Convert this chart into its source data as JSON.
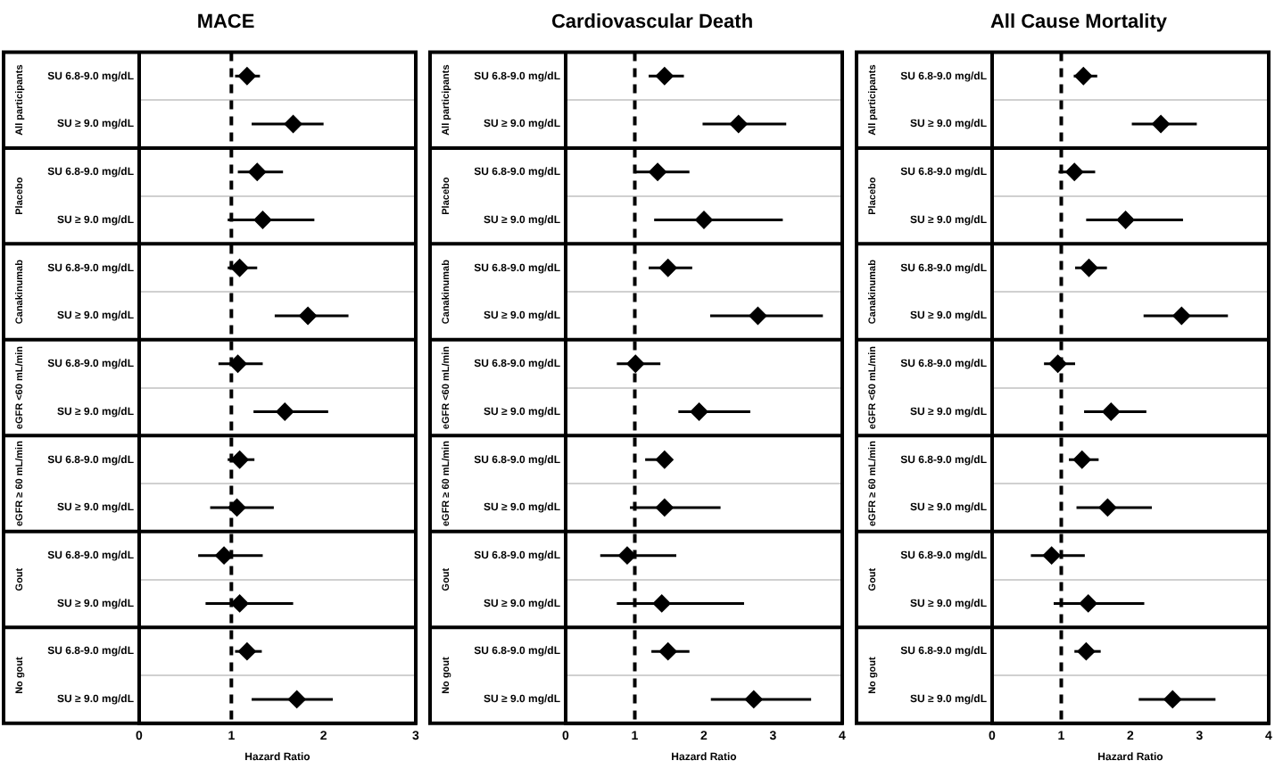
{
  "chart_data": [
    {
      "type": "scatter",
      "orientation": "horizontal",
      "title": "MACE",
      "xlabel": "Hazard Ratio",
      "color": "#000000",
      "marker": "diamond",
      "grid": "y",
      "xlim": [
        0,
        3
      ],
      "xticks": [
        0,
        1,
        2,
        3
      ],
      "categories": [
        "SU 6.8-9.0 mg/dL",
        "SU ≥ 9.0 mg/dL",
        "SU 6.8-9.0 mg/dL",
        "SU ≥ 9.0 mg/dL",
        "SU 6.8-9.0 mg/dL",
        "SU ≥ 9.0 mg/dL",
        "SU 6.8-9.0 mg/dL",
        "SU ≥ 9.0 mg/dL",
        "SU 6.8-9.0 mg/dL",
        "SU ≥ 9.0 mg/dL",
        "SU 6.8-9.0 mg/dL",
        "SU ≥ 9.0 mg/dL",
        "SU 6.8-9.0 mg/dL",
        "SU ≥ 9.0 mg/dL"
      ],
      "values": [
        1.17,
        1.67,
        1.28,
        1.34,
        1.09,
        1.83,
        1.07,
        1.58,
        1.09,
        1.06,
        0.92,
        1.09,
        1.17,
        1.71
      ],
      "errors": [
        [
          1.04,
          1.31
        ],
        [
          1.22,
          2.0
        ],
        [
          1.07,
          1.56
        ],
        [
          0.96,
          1.9
        ],
        [
          0.96,
          1.28
        ],
        [
          1.47,
          2.27
        ],
        [
          0.86,
          1.34
        ],
        [
          1.24,
          2.05
        ],
        [
          0.96,
          1.25
        ],
        [
          0.77,
          1.46
        ],
        [
          0.64,
          1.34
        ],
        [
          0.72,
          1.67
        ],
        [
          1.04,
          1.33
        ],
        [
          1.22,
          2.1
        ]
      ],
      "ref_lines": [
        {
          "axis": "x",
          "value": 1,
          "line_style": "dashed",
          "color": "#000000"
        }
      ],
      "annotations": [
        "All participants",
        "Placebo",
        "Canakinumab",
        "eGFR <60 mL/min",
        "eGFR ≥ 60 mL/min",
        "Gout",
        "No gout"
      ]
    },
    {
      "type": "scatter",
      "orientation": "horizontal",
      "title": "Cardiovascular Death",
      "xlabel": "Hazard Ratio",
      "color": "#000000",
      "marker": "diamond",
      "grid": "y",
      "xlim": [
        0,
        4
      ],
      "xticks": [
        0,
        1,
        2,
        3,
        4
      ],
      "categories": [
        "SU 6.8-9.0 mg/dL",
        "SU ≥ 9.0 mg/dL",
        "SU 6.8-9.0 mg/dL",
        "SU ≥ 9.0 mg/dL",
        "SU 6.8-9.0 mg/dL",
        "SU ≥ 9.0 mg/dL",
        "SU 6.8-9.0 mg/dL",
        "SU ≥ 9.0 mg/dL",
        "SU 6.8-9.0 mg/dL",
        "SU ≥ 9.0 mg/dL",
        "SU 6.8-9.0 mg/dL",
        "SU ≥ 9.0 mg/dL",
        "SU 6.8-9.0 mg/dL",
        "SU ≥ 9.0 mg/dL"
      ],
      "values": [
        1.43,
        2.5,
        1.33,
        2.0,
        1.48,
        2.78,
        1.01,
        1.93,
        1.43,
        1.43,
        0.89,
        1.39,
        1.48,
        2.72
      ],
      "errors": [
        [
          1.2,
          1.71
        ],
        [
          1.98,
          3.19
        ],
        [
          1.0,
          1.79
        ],
        [
          1.28,
          3.14
        ],
        [
          1.2,
          1.83
        ],
        [
          2.09,
          3.72
        ],
        [
          0.74,
          1.37
        ],
        [
          1.63,
          2.67
        ],
        [
          1.15,
          1.53
        ],
        [
          0.93,
          2.24
        ],
        [
          0.5,
          1.6
        ],
        [
          0.74,
          2.58
        ],
        [
          1.24,
          1.79
        ],
        [
          2.1,
          3.55
        ]
      ],
      "ref_lines": [
        {
          "axis": "x",
          "value": 1,
          "line_style": "dashed",
          "color": "#000000"
        }
      ],
      "annotations": [
        "All participants",
        "Placebo",
        "Canakinumab",
        "eGFR <60 mL/min",
        "eGFR ≥ 60 mL/min",
        "Gout",
        "No gout"
      ]
    },
    {
      "type": "scatter",
      "orientation": "horizontal",
      "title": "All Cause Mortality",
      "xlabel": "Hazard Ratio",
      "color": "#000000",
      "marker": "diamond",
      "grid": "y",
      "xlim": [
        0,
        4
      ],
      "xticks": [
        0,
        1,
        2,
        3,
        4
      ],
      "categories": [
        "SU 6.8-9.0 mg/dL",
        "SU ≥ 9.0 mg/dL",
        "SU 6.8-9.0 mg/dL",
        "SU ≥ 9.0 mg/dL",
        "SU 6.8-9.0 mg/dL",
        "SU ≥ 9.0 mg/dL",
        "SU 6.8-9.0 mg/dL",
        "SU ≥ 9.0 mg/dL",
        "SU 6.8-9.0 mg/dL",
        "SU ≥ 9.0 mg/dL",
        "SU 6.8-9.0 mg/dL",
        "SU ≥ 9.0 mg/dL",
        "SU 6.8-9.0 mg/dL",
        "SU ≥ 9.0 mg/dL"
      ],
      "values": [
        1.32,
        2.44,
        1.19,
        1.93,
        1.4,
        2.74,
        0.95,
        1.72,
        1.3,
        1.67,
        0.86,
        1.39,
        1.36,
        2.61
      ],
      "errors": [
        [
          1.18,
          1.52
        ],
        [
          2.02,
          2.96
        ],
        [
          0.96,
          1.49
        ],
        [
          1.36,
          2.76
        ],
        [
          1.2,
          1.66
        ],
        [
          2.19,
          3.41
        ],
        [
          0.75,
          1.2
        ],
        [
          1.33,
          2.23
        ],
        [
          1.11,
          1.54
        ],
        [
          1.22,
          2.31
        ],
        [
          0.56,
          1.34
        ],
        [
          0.89,
          2.2
        ],
        [
          1.19,
          1.57
        ],
        [
          2.12,
          3.23
        ]
      ],
      "ref_lines": [
        {
          "axis": "x",
          "value": 1,
          "line_style": "dashed",
          "color": "#000000"
        }
      ],
      "annotations": [
        "All participants",
        "Placebo",
        "Canakinumab",
        "eGFR <60 mL/min",
        "eGFR ≥ 60 mL/min",
        "Gout",
        "No gout"
      ]
    }
  ]
}
